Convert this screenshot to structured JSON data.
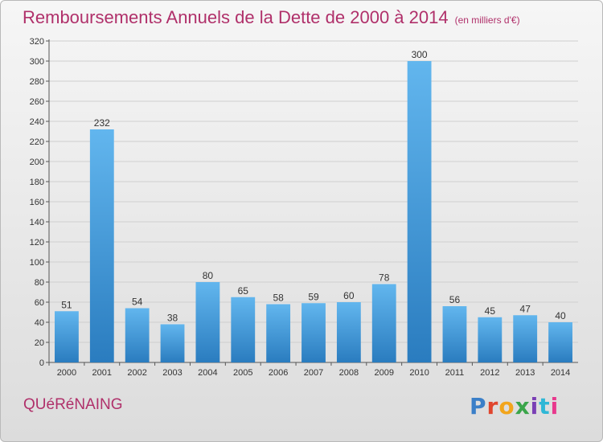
{
  "header": {
    "title": "Remboursements Annuels de la Dette de 2000 à 2014",
    "unit": "(en milliers d'€)"
  },
  "footer": {
    "place": "QUéRéNAING",
    "logo": "Proxiti"
  },
  "colors": {
    "title": "#b0306a",
    "bar_light": "#62b6ee",
    "bar_dark": "#2a7cbf",
    "grid": "#cfcfcf"
  },
  "chart_data": {
    "type": "bar",
    "categories": [
      "2000",
      "2001",
      "2002",
      "2003",
      "2004",
      "2005",
      "2006",
      "2007",
      "2008",
      "2009",
      "2010",
      "2011",
      "2012",
      "2013",
      "2014"
    ],
    "values": [
      51,
      232,
      54,
      38,
      80,
      65,
      58,
      59,
      60,
      78,
      300,
      56,
      45,
      47,
      40
    ],
    "ylim": [
      0,
      320
    ],
    "yticks": [
      0,
      20,
      40,
      60,
      80,
      100,
      120,
      140,
      160,
      180,
      200,
      220,
      240,
      260,
      280,
      300,
      320
    ],
    "grid": true,
    "data_labels": true
  }
}
